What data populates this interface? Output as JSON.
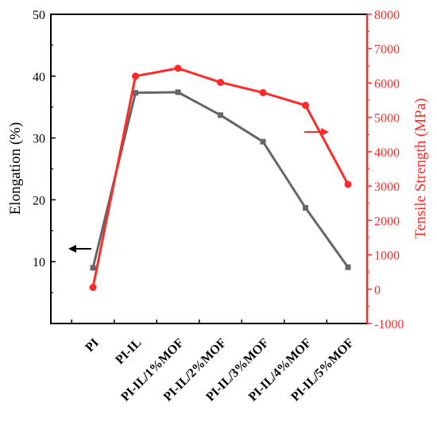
{
  "chart_data": {
    "type": "line",
    "categories": [
      "PI",
      "PI-IL",
      "PI-IL/1%MOF",
      "PI-IL/2%MOF",
      "PI-IL/3%MOF",
      "PI-IL/4%MOF",
      "PI-IL/5%MOF"
    ],
    "series": [
      {
        "axis": "left",
        "color": "#666666",
        "marker": "square",
        "values": [
          9.0,
          37.3,
          37.4,
          33.7,
          29.4,
          18.7,
          9.1
        ]
      },
      {
        "axis": "right",
        "color": "#ff2a2a",
        "marker": "circle",
        "values": [
          50,
          6200,
          6430,
          6020,
          5720,
          5350,
          3050
        ]
      }
    ],
    "y_left": {
      "label": "Elongation (%)",
      "range": [
        0,
        50
      ],
      "ticks": [
        10,
        20,
        30,
        40,
        50
      ],
      "color": "#000000"
    },
    "y_right": {
      "label": "Tensile Strength (MPa)",
      "range": [
        -1000,
        8000
      ],
      "ticks": [
        -1000,
        0,
        1000,
        2000,
        3000,
        4000,
        5000,
        6000,
        7000,
        8000
      ],
      "color": "#ff2a2a"
    },
    "annotations": [
      {
        "type": "arrow",
        "direction": "left",
        "color": "#000000",
        "points_to": "left-axis"
      },
      {
        "type": "arrow",
        "direction": "right",
        "color": "#ff2a2a",
        "points_to": "right-axis"
      }
    ],
    "grid": false,
    "legend": "none"
  }
}
